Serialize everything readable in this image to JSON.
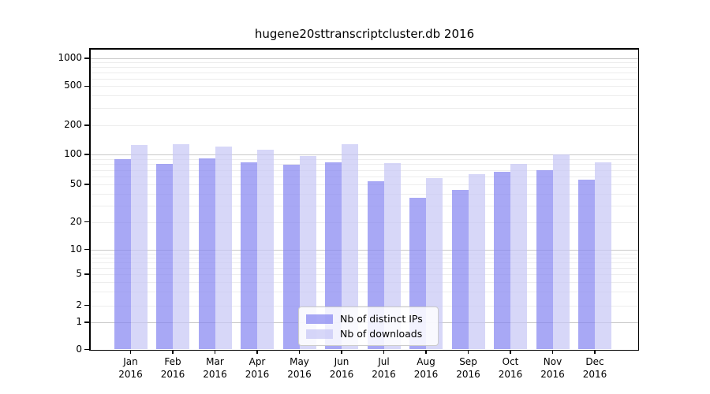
{
  "chart_data": {
    "type": "bar",
    "title": "hugene20sttranscriptcluster.db 2016",
    "categories": [
      "Jan",
      "Feb",
      "Mar",
      "Apr",
      "May",
      "Jun",
      "Jul",
      "Aug",
      "Sep",
      "Oct",
      "Nov",
      "Dec"
    ],
    "year": "2016",
    "series": [
      {
        "name": "Nb of distinct IPs",
        "fill": "rgba(131,131,241,0.7)",
        "values": [
          90,
          80,
          92,
          84,
          79,
          84,
          54,
          36,
          44,
          67,
          69,
          56
        ]
      },
      {
        "name": "Nb of downloads",
        "fill": "rgba(198,198,245,0.7)",
        "values": [
          126,
          128,
          120,
          113,
          96,
          127,
          82,
          58,
          64,
          81,
          100,
          84
        ]
      }
    ],
    "yscale": "symlog-like",
    "yticks": [
      1000,
      500,
      200,
      100,
      50,
      20,
      10,
      5,
      2,
      1,
      0
    ],
    "ylim": [
      0,
      1280
    ],
    "grid": "on",
    "legend_position": "bottom-center"
  },
  "colors": {
    "major_grid": "#c9c9c9",
    "minor_grid": "#ededed",
    "spine": "#000000",
    "background": "#ffffff"
  }
}
